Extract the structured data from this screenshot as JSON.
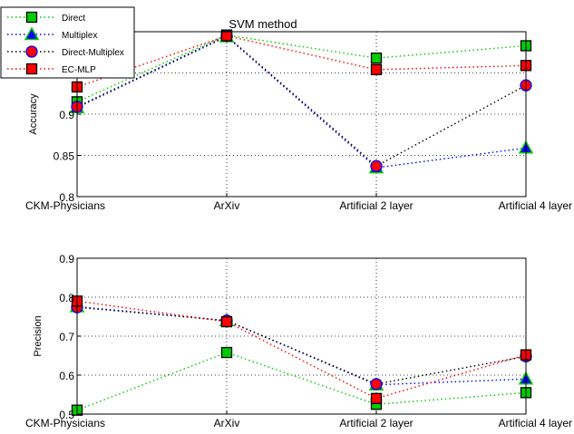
{
  "chart_data": [
    {
      "type": "line",
      "title": "SVM method",
      "xlabel": "",
      "ylabel": "Accuracy",
      "categories": [
        "CKM-Physicians",
        "ArXiv",
        "Artificial 2 layer",
        "Artificial 4 layer"
      ],
      "ylim": [
        0.8,
        1.0
      ],
      "yticks": [
        "0.8",
        "0.85",
        "0.9",
        "0.95"
      ],
      "grid": true,
      "legend": "top-left",
      "series": [
        {
          "name": "Direct",
          "color": "#00cc00",
          "marker": "square",
          "values": [
            0.915,
            0.996,
            0.968,
            0.983
          ]
        },
        {
          "name": "Multiplex",
          "color": "#0000ff",
          "marker": "triangle",
          "values": [
            0.908,
            0.994,
            0.835,
            0.859
          ]
        },
        {
          "name": "Direct-Multiplex",
          "color": "#000000",
          "marker": "circle",
          "values": [
            0.909,
            0.995,
            0.837,
            0.935
          ]
        },
        {
          "name": "EC-MLP",
          "color": "#ff0000",
          "marker": "square",
          "values": [
            0.933,
            0.995,
            0.954,
            0.959
          ]
        }
      ]
    },
    {
      "type": "line",
      "title": "",
      "xlabel": "",
      "ylabel": "Precision",
      "categories": [
        "CKM-Physicians",
        "ArXiv",
        "Artificial 2 layer",
        "Artificial 4 layer"
      ],
      "ylim": [
        0.5,
        0.9
      ],
      "yticks": [
        "0.5",
        "0.6",
        "0.7",
        "0.8",
        "0.9"
      ],
      "grid": true,
      "series": [
        {
          "name": "Direct",
          "color": "#00cc00",
          "marker": "square",
          "values": [
            0.51,
            0.658,
            0.525,
            0.555
          ]
        },
        {
          "name": "Multiplex",
          "color": "#0000ff",
          "marker": "triangle",
          "values": [
            0.776,
            0.74,
            0.575,
            0.59
          ]
        },
        {
          "name": "Direct-Multiplex",
          "color": "#000000",
          "marker": "circle",
          "values": [
            0.774,
            0.74,
            0.577,
            0.648
          ]
        },
        {
          "name": "EC-MLP",
          "color": "#ff0000",
          "marker": "square",
          "values": [
            0.79,
            0.737,
            0.54,
            0.652
          ]
        }
      ]
    }
  ]
}
